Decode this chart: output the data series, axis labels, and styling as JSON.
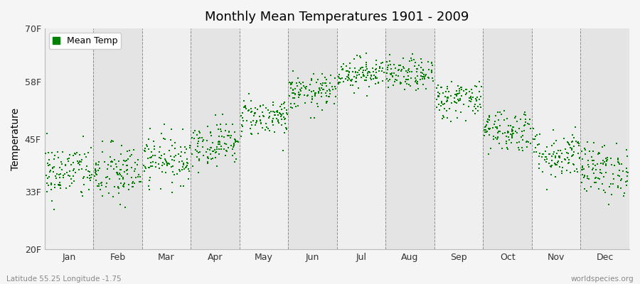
{
  "title": "Monthly Mean Temperatures 1901 - 2009",
  "ylabel": "Temperature",
  "ytick_labels": [
    "20F",
    "33F",
    "45F",
    "58F",
    "70F"
  ],
  "ytick_values": [
    20,
    33,
    45,
    58,
    70
  ],
  "ylim": [
    20,
    70
  ],
  "months": [
    "Jan",
    "Feb",
    "Mar",
    "Apr",
    "May",
    "Jun",
    "Jul",
    "Aug",
    "Sep",
    "Oct",
    "Nov",
    "Dec"
  ],
  "dot_color": "#008000",
  "background_color": "#f5f5f5",
  "plot_bg_color_light": "#efefef",
  "plot_bg_color_dark": "#e4e4e4",
  "legend_label": "Mean Temp",
  "subtitle_left": "Latitude 55.25 Longitude -1.75",
  "subtitle_right": "worldspecies.org",
  "n_years": 109,
  "seed": 42,
  "monthly_mean_F": [
    37.5,
    37.0,
    40.5,
    44.0,
    50.0,
    55.5,
    60.0,
    59.5,
    54.0,
    47.0,
    41.5,
    38.0
  ],
  "monthly_std_F": [
    3.2,
    3.5,
    2.8,
    2.5,
    2.2,
    2.0,
    1.8,
    1.8,
    2.2,
    2.5,
    2.8,
    3.0
  ]
}
